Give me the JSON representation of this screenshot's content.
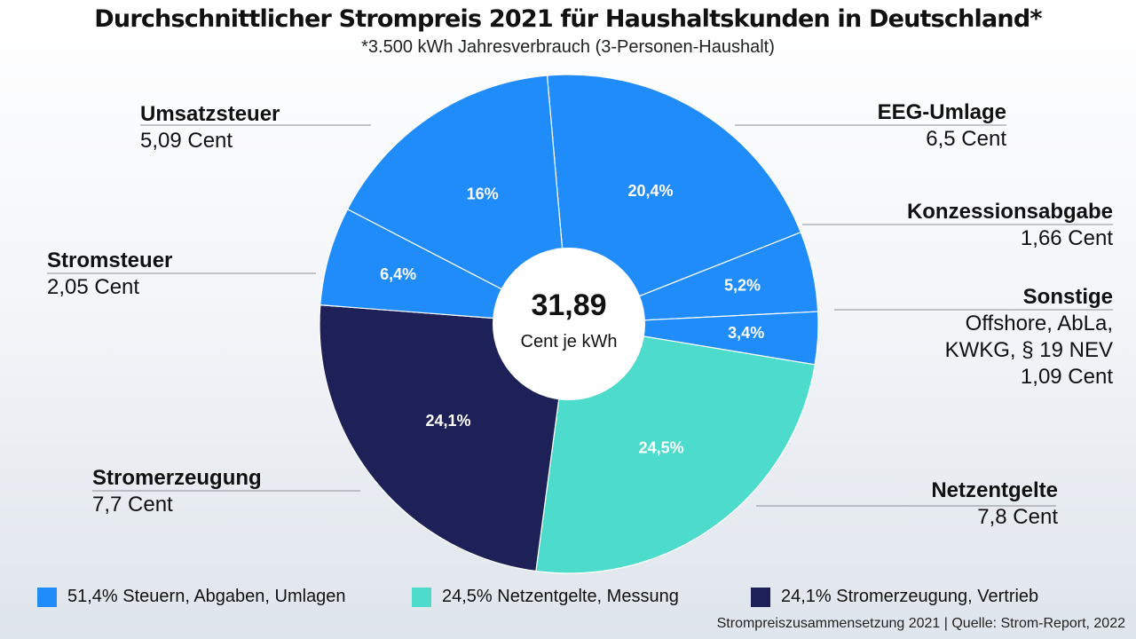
{
  "title": "Durchschnittlicher Strompreis 2021 für Haushaltskunden in Deutschland*",
  "subtitle": "*3.500 kWh Jahresverbrauch (3-Personen-Haushalt)",
  "center": {
    "value": "31,89",
    "unit": "Cent je kWh"
  },
  "labels": {
    "umsatzsteuer": {
      "name": "Umsatzsteuer",
      "value": "5,09 Cent"
    },
    "stromsteuer": {
      "name": "Stromsteuer",
      "value": "2,05 Cent"
    },
    "stromerzeugung": {
      "name": "Stromerzeugung",
      "value": "7,7 Cent"
    },
    "eeg": {
      "name": "EEG-Umlage",
      "value": "6,5 Cent"
    },
    "konzession": {
      "name": "Konzessionsabgabe",
      "value": "1,66 Cent"
    },
    "sonstige": {
      "name": "Sonstige",
      "value": "Offshore, AbLa,\nKWKG, § 19 NEV\n1,09 Cent"
    },
    "netz": {
      "name": "Netzentgelte",
      "value": "7,8 Cent"
    }
  },
  "legend": [
    {
      "label": "51,4% Steuern, Abgaben, Umlagen",
      "color": "#1f8cf9"
    },
    {
      "label": "24,5% Netzentgelte, Messung",
      "color": "#4ddbcc"
    },
    {
      "label": "24,1% Stromerzeugung, Vertrieb",
      "color": "#1e2158"
    }
  ],
  "footer": "Strompreiszusammensetzung 2021  |  Quelle: Strom-Report, 2022",
  "chart_data": {
    "type": "pie",
    "center_text": "31,89 Cent je kWh",
    "slices": [
      {
        "label": "EEG-Umlage",
        "value": 20.4,
        "display": "20,4%",
        "cent": "6,5 Cent",
        "color": "#1f8cf9"
      },
      {
        "label": "Konzessionsabgabe",
        "value": 5.2,
        "display": "5,2%",
        "cent": "1,66 Cent",
        "color": "#1f8cf9"
      },
      {
        "label": "Sonstige",
        "value": 3.4,
        "display": "3,4%",
        "cent": "1,09 Cent",
        "color": "#1f8cf9"
      },
      {
        "label": "Netzentgelte",
        "value": 24.5,
        "display": "24,5%",
        "cent": "7,8 Cent",
        "color": "#4ddbcc"
      },
      {
        "label": "Stromerzeugung",
        "value": 24.1,
        "display": "24,1%",
        "cent": "7,7 Cent",
        "color": "#1e2158"
      },
      {
        "label": "Stromsteuer",
        "value": 6.4,
        "display": "6,4%",
        "cent": "2,05 Cent",
        "color": "#1f8cf9"
      },
      {
        "label": "Umsatzsteuer",
        "value": 16,
        "display": "16%",
        "cent": "5,09 Cent",
        "color": "#1f8cf9"
      }
    ]
  }
}
